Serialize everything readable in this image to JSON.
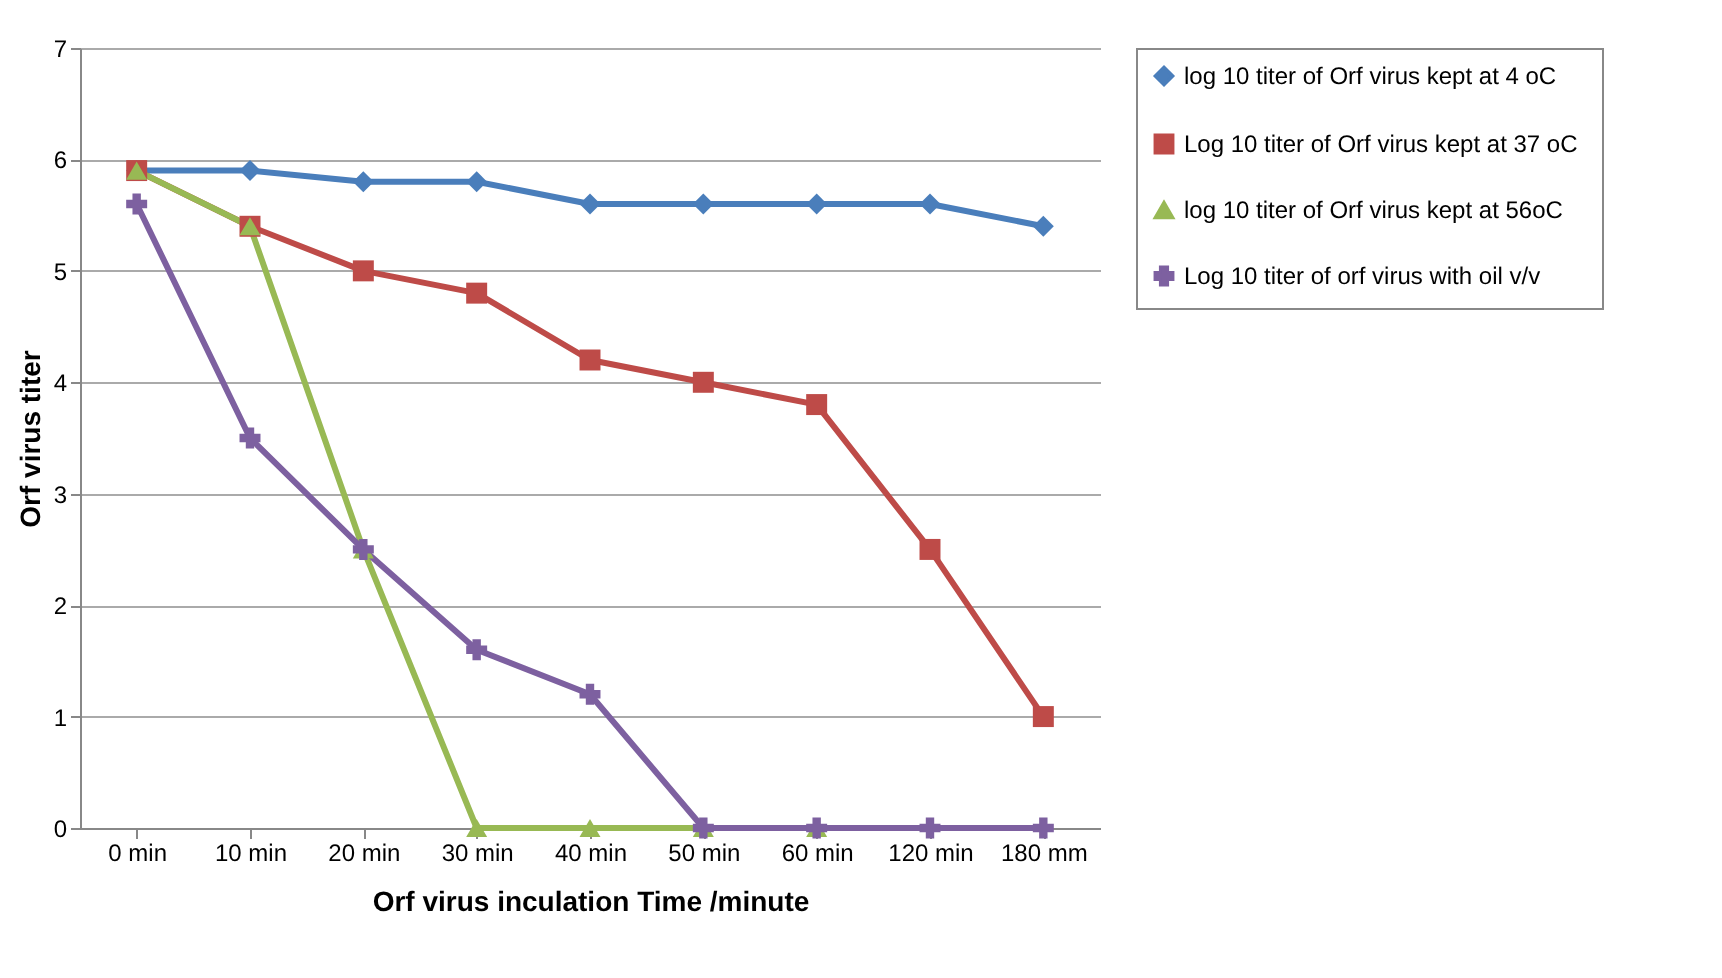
{
  "chart_data": {
    "type": "line",
    "xlabel": "Orf virus inculation Time /minute",
    "ylabel": "Orf virus titer",
    "categories": [
      "0 min",
      "10 min",
      "20 min",
      "30 min",
      "40 min",
      "50 min",
      "60 min",
      "120 min",
      "180 mm"
    ],
    "ylim": [
      0,
      7
    ],
    "yticks": [
      0,
      1,
      2,
      3,
      4,
      5,
      6,
      7
    ],
    "grid": "y",
    "legend": "right",
    "series": [
      {
        "name": "log 10 titer of Orf virus kept at 4 oC",
        "color": "#4a7ebb",
        "marker": "diamond",
        "values": [
          5.9,
          5.9,
          5.8,
          5.8,
          5.6,
          5.6,
          5.6,
          5.6,
          5.4
        ]
      },
      {
        "name": " Log 10 titer of Orf virus kept at 37  oC",
        "color": "#be4b48",
        "marker": "square",
        "values": [
          5.9,
          5.4,
          5.0,
          4.8,
          4.2,
          4.0,
          3.8,
          2.5,
          1.0
        ]
      },
      {
        "name": "log 10 titer of Orf virus kept at 56oC",
        "color": "#98b954",
        "marker": "triangle",
        "values": [
          5.9,
          5.4,
          2.5,
          0,
          0,
          0,
          0,
          null,
          null
        ]
      },
      {
        "name": "Log 10  titer of orf virus  with oil v/v",
        "color": "#7d60a0",
        "marker": "cross",
        "values": [
          5.6,
          3.5,
          2.5,
          1.6,
          1.2,
          0,
          0,
          0,
          0
        ]
      }
    ]
  }
}
